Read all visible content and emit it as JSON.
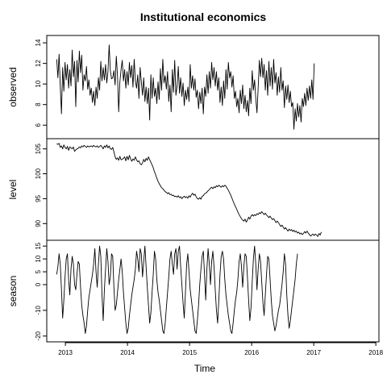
{
  "chart_data": {
    "type": "line",
    "title": "Institutional economics",
    "xlabel": "Time",
    "x_ticks": [
      {
        "value": 2013,
        "label": "2013"
      },
      {
        "value": 2014,
        "label": "2014"
      },
      {
        "value": 2015,
        "label": "2015"
      },
      {
        "value": 2016,
        "label": "2016"
      },
      {
        "value": 2017,
        "label": "2017"
      },
      {
        "value": 2018,
        "label": "2018"
      }
    ],
    "xlim": [
      2012.7,
      2018.05
    ],
    "x_start": 2012.86,
    "x_step": 0.0192,
    "panels": [
      {
        "ylabel": "observed",
        "ylim": [
          5,
          14.4
        ],
        "yticks": [
          {
            "value": 6,
            "label": "6"
          },
          {
            "value": 8,
            "label": "8"
          },
          {
            "value": 10,
            "label": "10"
          },
          {
            "value": 12,
            "label": "12"
          },
          {
            "value": 14,
            "label": "14"
          }
        ],
        "values": [
          12.4,
          10.6,
          12.9,
          9.8,
          7.1,
          11.6,
          9.3,
          12.1,
          10.4,
          11.9,
          9.6,
          11.4,
          9.8,
          13.3,
          10.7,
          12.2,
          7.8,
          12.3,
          10.2,
          13.2,
          11.1,
          12.8,
          9.4,
          10.9,
          10.3,
          11.7,
          9.5,
          10.4,
          8.9,
          9.6,
          8.2,
          9.3,
          7.9,
          9.7,
          8.6,
          10.6,
          9.4,
          12.2,
          10.3,
          11.6,
          10.4,
          11.9,
          10.1,
          11.2,
          13.8,
          11.3,
          10.5,
          10.6,
          11.3,
          9.9,
          12.7,
          10.8,
          7.3,
          10.2,
          11.4,
          12.3,
          10.3,
          11.4,
          9.6,
          11.2,
          9.9,
          12.1,
          10.6,
          11.8,
          9.7,
          12.4,
          10.3,
          9.6,
          10.9,
          8.6,
          11.6,
          10.2,
          8.9,
          10.6,
          8.3,
          9.7,
          8.1,
          9.6,
          6.5,
          10.9,
          8.6,
          10.6,
          8.8,
          9.6,
          8.1,
          10.2,
          8.5,
          11.5,
          9.4,
          12.4,
          10.1,
          10.8,
          9.5,
          11.2,
          8.3,
          9.9,
          7.3,
          11.4,
          9.2,
          12.3,
          8.9,
          9.8,
          11.7,
          9.1,
          10.6,
          8.8,
          10.1,
          7.9,
          9.4,
          8.5,
          9.7,
          8.3,
          11.9,
          9.6,
          10.8,
          9.4,
          10.5,
          8.7,
          9.4,
          7.6,
          9.2,
          8.1,
          9.6,
          7.1,
          9.7,
          8.8,
          10.9,
          9.1,
          11.2,
          9.6,
          12.1,
          10.4,
          11.6,
          9.8,
          11.2,
          9.4,
          10.6,
          8.2,
          9.7,
          7.9,
          10.3,
          8.6,
          11.4,
          9.5,
          12.1,
          10.6,
          11.2,
          9.7,
          10.8,
          8.6,
          9.3,
          7.8,
          8.6,
          7.2,
          9.4,
          8.1,
          9.9,
          7.6,
          8.9,
          7.3,
          8.4,
          6.9,
          9.6,
          8.1,
          11.3,
          9.4,
          10.4,
          8.6,
          7.2,
          9.6,
          12.3,
          10.7,
          12.5,
          10.6,
          11.9,
          9.4,
          11.3,
          8.9,
          12.2,
          9.8,
          11.6,
          9.5,
          12.4,
          10.1,
          11.1,
          8.9,
          10.7,
          9.2,
          11.6,
          9.4,
          10.3,
          7.7,
          9.8,
          8.5,
          9.9,
          8.2,
          9.3,
          7.8,
          8.2,
          5.6,
          7.6,
          6.4,
          8.1,
          6.8,
          7.9,
          6.3,
          8.6,
          7.8,
          9.1,
          7.9,
          9.6,
          8.4,
          9.8,
          8.6,
          10.4,
          8.5,
          12.0
        ],
        "y_round": 1
      },
      {
        "ylabel": "level",
        "ylim": [
          87.3,
          106.4
        ],
        "yticks": [
          {
            "value": 90,
            "label": "90"
          },
          {
            "value": 95,
            "label": "95"
          },
          {
            "value": 100,
            "label": "100"
          },
          {
            "value": 105,
            "label": "105"
          }
        ],
        "values": [
          106.0,
          105.9,
          106.1,
          105.3,
          105.6,
          105.0,
          105.8,
          105.3,
          105.0,
          105.5,
          104.7,
          105.4,
          105.2,
          105.0,
          105.4,
          104.5,
          104.8,
          105.0,
          105.1,
          105.4,
          105.2,
          105.6,
          105.4,
          105.7,
          105.5,
          105.3,
          105.6,
          105.4,
          105.5,
          105.6,
          105.4,
          105.7,
          105.5,
          105.4,
          105.6,
          105.3,
          105.5,
          105.7,
          105.4,
          105.0,
          105.6,
          105.3,
          105.8,
          105.2,
          105.6,
          105.0,
          104.9,
          105.3,
          104.4,
          103.4,
          102.9,
          103.2,
          102.7,
          103.5,
          102.8,
          102.9,
          103.1,
          103.4,
          102.6,
          103.5,
          102.8,
          103.7,
          103.0,
          102.5,
          103.0,
          102.7,
          103.4,
          102.8,
          102.4,
          102.6,
          102.0,
          101.8,
          102.2,
          102.9,
          102.4,
          103.1,
          102.7,
          103.4,
          102.8,
          102.3,
          101.8,
          101.2,
          100.4,
          99.8,
          99.1,
          98.5,
          98.0,
          97.6,
          97.2,
          97.0,
          96.7,
          96.4,
          96.3,
          96.0,
          96.2,
          95.8,
          95.9,
          95.6,
          95.7,
          95.4,
          95.5,
          95.3,
          95.6,
          95.2,
          95.4,
          95.0,
          95.3,
          95.5,
          95.2,
          95.4,
          95.1,
          95.6,
          95.3,
          95.8,
          96.1,
          95.7,
          95.9,
          95.4,
          95.0,
          94.9,
          95.2,
          94.9,
          95.5,
          95.6,
          96.0,
          96.1,
          96.3,
          96.6,
          96.8,
          97.1,
          97.3,
          97.0,
          97.4,
          97.2,
          97.6,
          97.4,
          97.7,
          97.5,
          97.3,
          97.6,
          97.4,
          97.7,
          97.5,
          97.1,
          96.7,
          96.2,
          95.7,
          95.1,
          94.5,
          93.9,
          93.4,
          92.9,
          92.3,
          91.8,
          91.4,
          91.0,
          90.7,
          90.5,
          90.9,
          90.3,
          90.7,
          91.3,
          90.9,
          91.5,
          91.8,
          91.5,
          91.8,
          91.6,
          92.0,
          91.8,
          92.2,
          92.0,
          92.4,
          92.1,
          91.8,
          92.1,
          91.7,
          91.5,
          91.2,
          91.5,
          91.1,
          90.8,
          91.0,
          90.6,
          90.2,
          90.5,
          90.2,
          89.8,
          89.4,
          89.7,
          89.3,
          88.9,
          89.2,
          88.8,
          88.5,
          88.9,
          88.6,
          88.8,
          88.4,
          88.7,
          88.3,
          88.5,
          88.1,
          88.3,
          87.9,
          88.1,
          87.8,
          88.0,
          88.4,
          88.1,
          88.5,
          88.1,
          87.8,
          87.5,
          87.7,
          87.9,
          87.6,
          87.9,
          87.7,
          87.4,
          88.0,
          87.7,
          88.3
        ],
        "y_round": 1
      },
      {
        "ylabel": "season",
        "ylim": [
          -21,
          16
        ],
        "yticks": [
          {
            "value": -20,
            "label": "-20"
          },
          {
            "value": -10,
            "label": "-10"
          },
          {
            "value": 0,
            "label": "0"
          },
          {
            "value": 5,
            "label": "5"
          },
          {
            "value": 10,
            "label": "10"
          },
          {
            "value": 15,
            "label": "15"
          }
        ],
        "values": [
          4,
          7,
          12,
          8,
          -2,
          -13,
          -6,
          3,
          10,
          12,
          2,
          -4,
          6,
          11,
          8,
          0,
          -2,
          4,
          9,
          8,
          -1,
          -8,
          -12,
          -15,
          -19,
          -16,
          -10,
          -5,
          -2,
          1,
          4,
          8,
          14,
          5,
          -1,
          8,
          15,
          11,
          -4,
          -14,
          -2,
          6,
          14,
          9,
          0,
          3,
          12,
          11,
          -1,
          -10,
          -8,
          -3,
          2,
          6,
          10,
          5,
          -3,
          -9,
          -15,
          -19,
          -17,
          -12,
          -8,
          -4,
          -1,
          2,
          6,
          13,
          10,
          5,
          14,
          12,
          3,
          9,
          15,
          7,
          -1,
          -8,
          -15,
          -11,
          -3,
          4,
          13,
          10,
          2,
          -3,
          -6,
          -10,
          -14,
          -18,
          -19,
          -15,
          -9,
          -3,
          3,
          10,
          13,
          8,
          4,
          12,
          14,
          6,
          13,
          15,
          7,
          0,
          -7,
          -13,
          -3,
          8,
          12,
          5,
          -2,
          -6,
          -10,
          -14,
          -18,
          -19,
          -14,
          -8,
          0,
          6,
          11,
          13,
          4,
          -6,
          6,
          14,
          8,
          0,
          9,
          13,
          7,
          -2,
          -10,
          -15,
          -6,
          4,
          11,
          13,
          10,
          2,
          -4,
          -8,
          -12,
          -15,
          -18,
          -19,
          -15,
          -10,
          -6,
          -3,
          2,
          9,
          12,
          7,
          -1,
          7,
          12,
          11,
          3,
          -6,
          -14,
          -9,
          1,
          10,
          15,
          8,
          -2,
          6,
          12,
          9,
          1,
          -7,
          -12,
          -4,
          4,
          11,
          10,
          2,
          -6,
          -12,
          -15,
          -18,
          -16,
          -13,
          -10,
          -8,
          -4,
          0,
          5,
          12,
          8,
          -4,
          -12,
          -17,
          -14,
          -10,
          -6,
          -2,
          2,
          8,
          12
        ],
        "y_round": 0
      }
    ]
  }
}
